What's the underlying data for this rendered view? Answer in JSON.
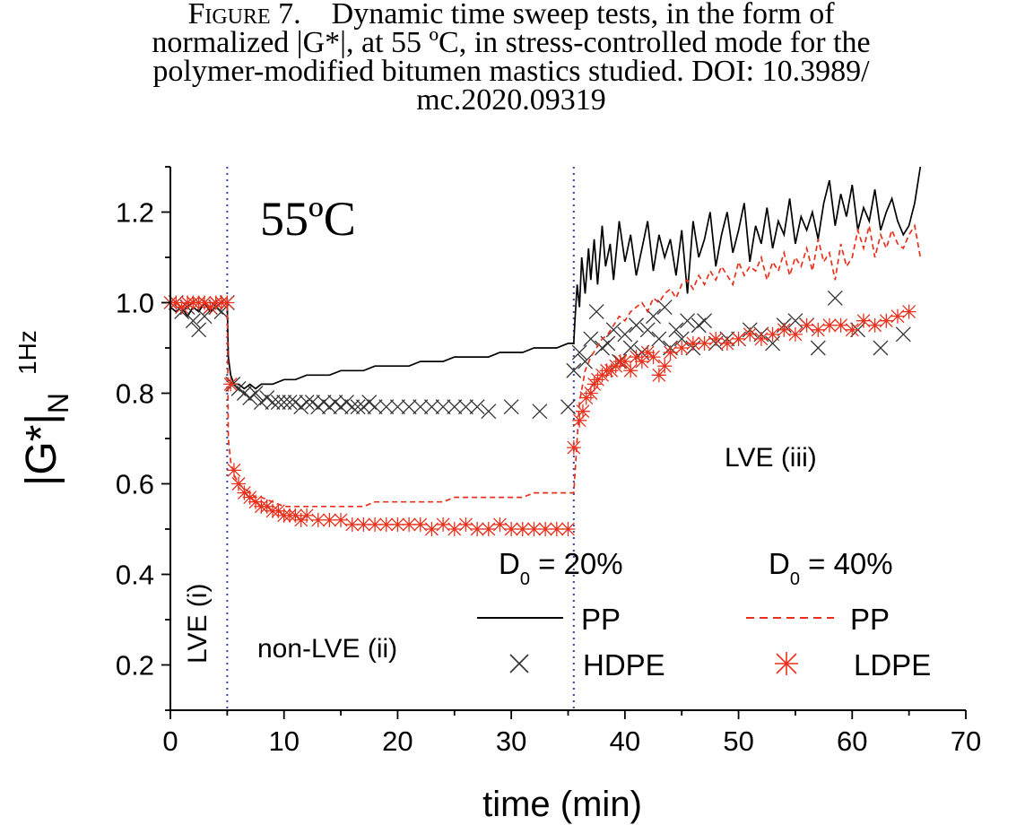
{
  "caption": {
    "figure_label": "Figure 7.",
    "line1": "Dynamic time sweep tests, in the form of",
    "line2": "normalized |G*|, at 55 ºC, in stress-controlled mode for the",
    "line3": "polymer-modified bitumen mastics studied. DOI: 10.3989/",
    "line4": "mc.2020.09319"
  },
  "chart_data": {
    "type": "line",
    "xlabel": "time (min)",
    "ylabel_main": "|G*|",
    "ylabel_sub": "N",
    "ylabel_sup": "1Hz",
    "xlim": [
      0,
      70
    ],
    "ylim": [
      0.1,
      1.3
    ],
    "x_ticks": [
      "0",
      "10",
      "20",
      "30",
      "40",
      "50",
      "60",
      "70"
    ],
    "y_ticks": [
      "0.2",
      "0.4",
      "0.6",
      "0.8",
      "1.0",
      "1.2"
    ],
    "grid": false,
    "temperature_label": "55ºC",
    "regions": [
      {
        "label": "LVE (i)",
        "x_start": 0,
        "x_end": 5
      },
      {
        "label": "non-LVE (ii)",
        "x_start": 5,
        "x_end": 35.5
      },
      {
        "label": "LVE (iii)",
        "x_start": 35.5,
        "x_end": 70
      }
    ],
    "dividers_x": [
      5,
      35.5
    ],
    "legend": {
      "position": "bottom-right",
      "group1_label": "D",
      "group1_sub": "0",
      "group1_value": " = 20%",
      "group2_label": "D",
      "group2_sub": "0",
      "group2_value": " = 40%"
    },
    "colors": {
      "black": "#000000",
      "red": "#e8301c",
      "divider": "#3344aa",
      "hdpe": "#333333"
    },
    "series": [
      {
        "name": "PP",
        "group": "D0 = 20%",
        "style": "solid-black",
        "x": [
          0,
          0.5,
          1,
          1.5,
          2,
          2.5,
          3,
          3.5,
          4,
          4.5,
          5,
          5.1,
          5.3,
          5.6,
          6,
          6.5,
          7,
          7.5,
          8,
          9,
          10,
          11,
          12,
          13,
          14,
          15,
          16,
          17,
          18,
          19,
          20,
          21,
          22,
          23,
          24,
          25,
          26,
          27,
          28,
          29,
          30,
          31,
          32,
          33,
          34,
          35,
          35.5,
          35.6,
          35.8,
          36.0,
          36.2,
          36.5,
          36.8,
          37.0,
          37.3,
          37.6,
          38.0,
          38.3,
          38.7,
          39.0,
          39.5,
          40.0,
          40.5,
          41.0,
          41.5,
          42.0,
          42.5,
          43.0,
          43.5,
          44.0,
          44.5,
          45.0,
          45.5,
          46.0,
          46.5,
          47.0,
          47.5,
          48.0,
          48.5,
          49.0,
          49.5,
          50.0,
          50.5,
          51.0,
          51.5,
          52.0,
          52.5,
          53.0,
          53.5,
          54.0,
          54.5,
          55.0,
          55.5,
          56.0,
          56.5,
          57.0,
          57.5,
          58.0,
          58.5,
          59.0,
          59.5,
          60.0,
          60.5,
          61.0,
          61.5,
          62.0,
          62.5,
          63.0,
          63.5,
          64.0,
          64.5,
          65.0,
          65.5,
          66.0
        ],
        "values": [
          0.99,
          0.98,
          0.99,
          0.97,
          0.99,
          0.98,
          1.0,
          0.98,
          0.99,
          1.0,
          1.0,
          0.88,
          0.84,
          0.82,
          0.82,
          0.81,
          0.82,
          0.81,
          0.82,
          0.82,
          0.83,
          0.83,
          0.84,
          0.84,
          0.84,
          0.85,
          0.85,
          0.85,
          0.86,
          0.86,
          0.86,
          0.86,
          0.87,
          0.87,
          0.87,
          0.88,
          0.88,
          0.88,
          0.88,
          0.89,
          0.89,
          0.89,
          0.9,
          0.9,
          0.9,
          0.91,
          0.91,
          0.96,
          1.04,
          0.99,
          1.1,
          1.02,
          1.12,
          1.05,
          1.14,
          1.04,
          1.17,
          1.08,
          1.13,
          1.05,
          1.18,
          1.09,
          1.15,
          1.06,
          1.12,
          1.18,
          1.07,
          1.15,
          1.1,
          1.14,
          1.06,
          1.16,
          1.02,
          1.18,
          1.1,
          1.14,
          1.2,
          1.08,
          1.15,
          1.2,
          1.11,
          1.16,
          1.22,
          1.09,
          1.17,
          1.13,
          1.21,
          1.12,
          1.18,
          1.15,
          1.23,
          1.13,
          1.19,
          1.16,
          1.2,
          1.14,
          1.22,
          1.27,
          1.17,
          1.24,
          1.19,
          1.26,
          1.16,
          1.21,
          1.18,
          1.25,
          1.16,
          1.2,
          1.23,
          1.18,
          1.15,
          1.17,
          1.22,
          1.3
        ]
      },
      {
        "name": "HDPE",
        "group": "D0 = 20%",
        "style": "x-marker",
        "x": [
          0.5,
          1,
          1.5,
          2,
          2.5,
          3,
          3.5,
          4,
          4.5,
          5,
          5.5,
          6,
          6.5,
          7,
          7.5,
          8,
          8.5,
          9,
          9.5,
          10,
          10.5,
          11,
          11.5,
          12,
          12.5,
          13,
          13.5,
          14,
          14.5,
          15,
          15.5,
          16,
          16.5,
          17,
          17.5,
          18,
          19,
          20,
          21,
          22,
          23,
          24,
          25,
          26,
          27,
          28,
          30,
          32.5,
          35,
          35.5,
          36,
          36.5,
          37,
          37.5,
          38,
          38.5,
          39,
          39.5,
          40,
          40.5,
          41,
          41.5,
          42,
          42.5,
          43,
          43.5,
          44,
          44.5,
          45,
          45.5,
          46,
          46.5,
          47,
          48,
          49,
          50,
          51,
          52,
          53,
          54,
          55,
          56,
          57,
          58.5,
          60.5,
          62.5,
          64.5
        ],
        "values": [
          1.0,
          0.98,
          0.99,
          0.96,
          0.94,
          0.97,
          0.99,
          0.99,
          0.98,
          1.0,
          0.82,
          0.81,
          0.8,
          0.79,
          0.8,
          0.78,
          0.79,
          0.78,
          0.78,
          0.78,
          0.78,
          0.78,
          0.77,
          0.78,
          0.78,
          0.77,
          0.78,
          0.77,
          0.78,
          0.77,
          0.78,
          0.77,
          0.77,
          0.77,
          0.78,
          0.77,
          0.77,
          0.77,
          0.77,
          0.77,
          0.77,
          0.77,
          0.77,
          0.77,
          0.77,
          0.76,
          0.77,
          0.76,
          0.77,
          0.85,
          0.89,
          0.87,
          0.92,
          0.98,
          0.9,
          0.91,
          0.94,
          0.87,
          0.93,
          0.9,
          0.95,
          0.89,
          0.94,
          0.97,
          0.92,
          0.99,
          0.9,
          0.94,
          0.92,
          0.96,
          0.9,
          0.95,
          0.96,
          0.91,
          0.92,
          0.92,
          0.94,
          0.93,
          0.91,
          0.95,
          0.96,
          0.95,
          0.9,
          1.01,
          0.94,
          0.9,
          0.93
        ]
      },
      {
        "name": "PP",
        "group": "D0 = 40%",
        "style": "dashed-red",
        "x": [
          0,
          0.5,
          1,
          1.5,
          2,
          2.5,
          3,
          3.5,
          4,
          4.5,
          5,
          5.1,
          5.3,
          5.6,
          6,
          6.5,
          7,
          7.5,
          8,
          9,
          10,
          11,
          12,
          13,
          14,
          15,
          16,
          17,
          18,
          19,
          20,
          21,
          22,
          23,
          24,
          25,
          26,
          27,
          28,
          29,
          30,
          31,
          32,
          33,
          34,
          35,
          35.5,
          35.7,
          36.0,
          36.5,
          37.0,
          37.5,
          38.0,
          38.5,
          39.0,
          39.5,
          40.0,
          40.5,
          41.0,
          41.5,
          42.0,
          42.5,
          43.0,
          43.5,
          44.0,
          44.5,
          45.0,
          45.5,
          46.0,
          46.5,
          47.0,
          47.5,
          48.0,
          48.5,
          49.0,
          49.5,
          50.0,
          50.5,
          51.0,
          51.5,
          52.0,
          52.5,
          53.0,
          53.5,
          54.0,
          54.5,
          55.0,
          55.5,
          56.0,
          56.5,
          57.0,
          57.5,
          58.0,
          58.5,
          59.0,
          59.5,
          60.0,
          60.5,
          61.0,
          61.5,
          62.0,
          62.5,
          63.0,
          63.5,
          64.0,
          64.5,
          65.0,
          65.5,
          66.0
        ],
        "values": [
          1.0,
          1.0,
          0.99,
          1.0,
          1.0,
          1.0,
          1.0,
          1.0,
          1.0,
          1.0,
          1.0,
          0.7,
          0.65,
          0.62,
          0.6,
          0.59,
          0.58,
          0.57,
          0.57,
          0.56,
          0.55,
          0.55,
          0.55,
          0.55,
          0.55,
          0.55,
          0.55,
          0.55,
          0.56,
          0.56,
          0.56,
          0.56,
          0.56,
          0.56,
          0.56,
          0.57,
          0.57,
          0.57,
          0.57,
          0.57,
          0.57,
          0.57,
          0.58,
          0.58,
          0.58,
          0.58,
          0.58,
          0.66,
          0.78,
          0.85,
          0.88,
          0.9,
          0.92,
          0.93,
          0.95,
          0.97,
          0.96,
          0.98,
          0.99,
          1.0,
          0.98,
          1.01,
          1.0,
          1.02,
          1.03,
          1.01,
          1.04,
          1.05,
          1.03,
          1.06,
          1.04,
          1.07,
          1.05,
          1.08,
          1.06,
          1.04,
          1.09,
          1.06,
          1.08,
          1.07,
          1.1,
          1.05,
          1.09,
          1.07,
          1.11,
          1.06,
          1.1,
          1.08,
          1.12,
          1.07,
          1.14,
          1.09,
          1.11,
          1.05,
          1.13,
          1.08,
          1.1,
          1.16,
          1.12,
          1.17,
          1.1,
          1.15,
          1.12,
          1.16,
          1.13,
          1.12,
          1.15,
          1.17,
          1.1
        ]
      },
      {
        "name": "LDPE",
        "group": "D0 = 40%",
        "style": "asterisk-red",
        "x": [
          0,
          0.5,
          1,
          1.5,
          2,
          2.5,
          3,
          3.5,
          4,
          4.5,
          5,
          5.3,
          5.6,
          6,
          6.5,
          7,
          7.5,
          8,
          8.5,
          9,
          9.5,
          10,
          10.5,
          11,
          11.5,
          12,
          13,
          14,
          15,
          16,
          17,
          18,
          19,
          20,
          21,
          22,
          23,
          24,
          25,
          26,
          27,
          28,
          29,
          30,
          31,
          32,
          33,
          34,
          35,
          35.5,
          36,
          36.3,
          36.6,
          37,
          37.3,
          37.6,
          38,
          38.4,
          38.8,
          39.2,
          39.6,
          40,
          40.5,
          41,
          41.5,
          42,
          42.5,
          43,
          43.5,
          44,
          45,
          46,
          47,
          48,
          49,
          50,
          51,
          52,
          53,
          54,
          55,
          56,
          57,
          58,
          59,
          60,
          61,
          62,
          63,
          64,
          65
        ],
        "values": [
          1.0,
          1.0,
          0.99,
          1.0,
          1.0,
          1.0,
          1.0,
          0.99,
          1.0,
          1.0,
          1.0,
          0.82,
          0.63,
          0.6,
          0.58,
          0.57,
          0.56,
          0.55,
          0.55,
          0.54,
          0.54,
          0.53,
          0.53,
          0.53,
          0.52,
          0.53,
          0.52,
          0.52,
          0.52,
          0.51,
          0.51,
          0.51,
          0.51,
          0.51,
          0.51,
          0.51,
          0.5,
          0.51,
          0.5,
          0.51,
          0.5,
          0.5,
          0.51,
          0.5,
          0.5,
          0.5,
          0.5,
          0.5,
          0.5,
          0.68,
          0.74,
          0.76,
          0.79,
          0.8,
          0.82,
          0.83,
          0.84,
          0.85,
          0.85,
          0.86,
          0.87,
          0.87,
          0.85,
          0.88,
          0.87,
          0.89,
          0.88,
          0.84,
          0.86,
          0.89,
          0.9,
          0.91,
          0.91,
          0.92,
          0.91,
          0.92,
          0.93,
          0.92,
          0.93,
          0.94,
          0.93,
          0.95,
          0.94,
          0.95,
          0.95,
          0.94,
          0.96,
          0.95,
          0.96,
          0.97,
          0.98
        ]
      }
    ],
    "legend_labels": {
      "pp_20": "PP",
      "hdpe": "HDPE",
      "pp_40": "PP",
      "ldpe": "LDPE"
    }
  }
}
